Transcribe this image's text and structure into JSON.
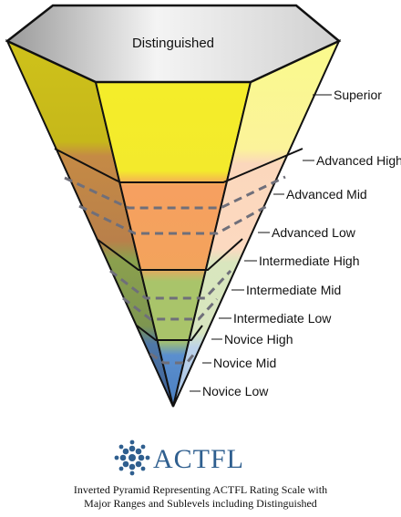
{
  "top_label": "Distinguished",
  "levels": [
    {
      "label": "Superior"
    },
    {
      "label": "Advanced High"
    },
    {
      "label": "Advanced Mid"
    },
    {
      "label": "Advanced Low"
    },
    {
      "label": "Intermediate High"
    },
    {
      "label": "Intermediate Mid"
    },
    {
      "label": "Intermediate Low"
    },
    {
      "label": "Novice High"
    },
    {
      "label": "Novice Mid"
    },
    {
      "label": "Novice Low"
    }
  ],
  "logo": {
    "text": "ACTFL",
    "color": "#2f5f8f"
  },
  "caption": {
    "line1": "Inverted Pyramid Representing ACTFL Rating Scale with",
    "line2": "Major Ranges and Sublevels including Distinguished"
  },
  "colors": {
    "superior": "#f0e832",
    "advanced": "#f6a25e",
    "intermediate": "#a9c46a",
    "novice": "#5b8fce"
  }
}
